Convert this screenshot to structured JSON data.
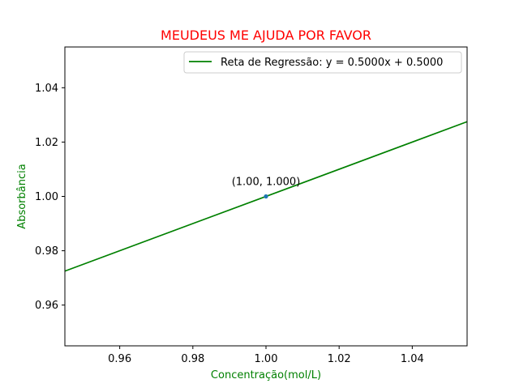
{
  "chart_data": {
    "type": "scatter",
    "title": "MEUDEUS ME AJUDA POR FAVOR",
    "title_color": "#ff0000",
    "xlabel": "Concentração(mol/L)",
    "ylabel": "Absorbância",
    "label_color": "#008000",
    "xlim": [
      0.945,
      1.055
    ],
    "ylim": [
      0.945,
      1.055
    ],
    "x_ticks": [
      0.96,
      0.98,
      1.0,
      1.02,
      1.04
    ],
    "x_tick_labels": [
      "0.96",
      "0.98",
      "1.00",
      "1.02",
      "1.04"
    ],
    "y_ticks": [
      0.96,
      0.98,
      1.0,
      1.02,
      1.04
    ],
    "y_tick_labels": [
      "0.96",
      "0.98",
      "1.00",
      "1.02",
      "1.04"
    ],
    "grid": false,
    "legend_position": "top-right",
    "points": [
      {
        "x": 1.0,
        "y": 1.0,
        "label": "(1.00, 1.000)",
        "color": "#1f77b4"
      }
    ],
    "series": [
      {
        "name": "Reta de Regressão: y = 0.5000x + 0.5000",
        "type": "line",
        "slope": 0.5,
        "intercept": 0.5,
        "color": "#008000"
      }
    ]
  }
}
